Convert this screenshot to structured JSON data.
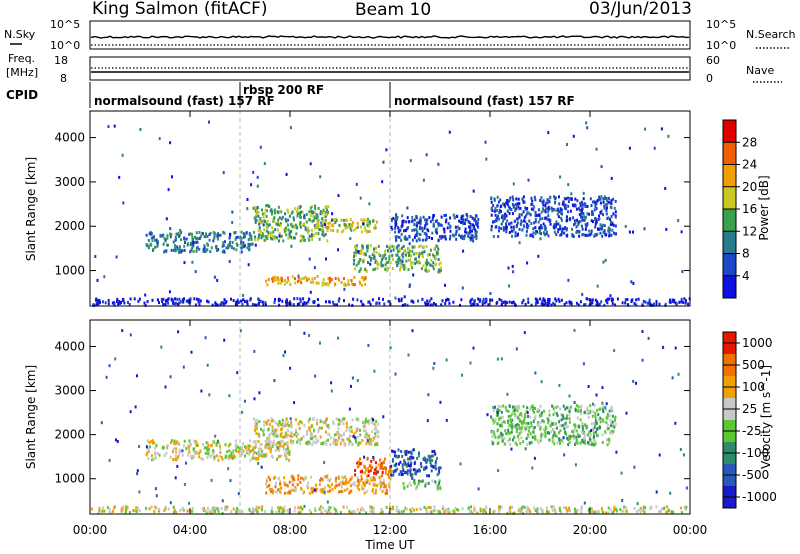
{
  "header": {
    "station": "King Salmon (fitACF)",
    "beam": "Beam 10",
    "date": "03/Jun/2013"
  },
  "panels": {
    "nsky": {
      "left_label": "N.Sky",
      "ticks": [
        "10^5",
        "10^0"
      ],
      "right_label": "N.Search",
      "right_ticks": [
        "10^5",
        "10^0"
      ]
    },
    "freq": {
      "left_label_line1": "Freq.",
      "left_label_line2": "[MHz]",
      "ticks": [
        "18",
        "8"
      ],
      "right_label": "Nave",
      "right_ticks": [
        "60",
        "0"
      ]
    },
    "cpid": {
      "label": "CPID",
      "modes": [
        {
          "text": "normalsound (fast) 157 RF",
          "start_hour": 0
        },
        {
          "text": "rbsp 200 RF",
          "start_hour": 6
        },
        {
          "text": "normalsound (fast) 157 RF",
          "start_hour": 12
        }
      ]
    },
    "power": {
      "ylabel": "Slant Range [km]",
      "colorbar_label": "Power [dB]",
      "colorbar_ticks": [
        "28",
        "24",
        "20",
        "16",
        "12",
        "8",
        "4"
      ],
      "colors": [
        "#1010e0",
        "#1c48c8",
        "#2a7a8e",
        "#3aa050",
        "#c8c81e",
        "#f0a000",
        "#f06000",
        "#e00000"
      ]
    },
    "velocity": {
      "ylabel": "Slant Range [km]",
      "colorbar_label": "Velocity [m s^-1]",
      "colorbar_ticks": [
        "1000",
        "500",
        "100",
        "25",
        "-25",
        "-100",
        "-500",
        "-1000"
      ],
      "colors": [
        "#1a1ac8",
        "#2a58b8",
        "#2e8c6a",
        "#5ac832",
        "#c8c8c8",
        "#f0a000",
        "#f07000",
        "#e81800"
      ]
    }
  },
  "chart_data": {
    "type": "heatmap",
    "xlabel": "Time UT",
    "xticks": [
      "00:00",
      "04:00",
      "08:00",
      "12:00",
      "16:00",
      "20:00",
      "00:00"
    ],
    "xlim_hours": [
      0,
      24
    ],
    "ylim_km": [
      200,
      4600
    ],
    "yticks_km": [
      1000,
      2000,
      3000,
      4000
    ],
    "ytick_labels": [
      "1000",
      "2000",
      "3000",
      "4000"
    ],
    "mode_change_hours": [
      6,
      12
    ],
    "power_scatter_regions": [
      {
        "t0": 2.2,
        "t1": 6.5,
        "r0": 1450,
        "r1": 1900,
        "level": 2
      },
      {
        "t0": 6.5,
        "t1": 9.5,
        "r0": 1700,
        "r1": 2500,
        "level": 3
      },
      {
        "t0": 9.0,
        "t1": 11.5,
        "r0": 1900,
        "r1": 2200,
        "level": 4
      },
      {
        "t0": 7.0,
        "t1": 11.0,
        "r0": 700,
        "r1": 900,
        "level": 5
      },
      {
        "t0": 10.5,
        "t1": 14.0,
        "r0": 1000,
        "r1": 1600,
        "level": 3
      },
      {
        "t0": 12.0,
        "t1": 15.5,
        "r0": 1700,
        "r1": 2300,
        "level": 1
      },
      {
        "t0": 16.0,
        "t1": 21.0,
        "r0": 1800,
        "r1": 2700,
        "level": 1
      },
      {
        "t0": 0.0,
        "t1": 24.0,
        "r0": 200,
        "r1": 400,
        "level": 0
      }
    ],
    "velocity_scatter_regions": [
      {
        "t0": 2.2,
        "t1": 8.0,
        "r0": 1450,
        "r1": 1900,
        "level": 4
      },
      {
        "t0": 6.5,
        "t1": 11.5,
        "r0": 1800,
        "r1": 2400,
        "level": 4
      },
      {
        "t0": 7.0,
        "t1": 12.0,
        "r0": 700,
        "r1": 1100,
        "level": 5
      },
      {
        "t0": 10.5,
        "t1": 12.0,
        "r0": 1100,
        "r1": 1500,
        "level": 6
      },
      {
        "t0": 12.0,
        "t1": 14.0,
        "r0": 1100,
        "r1": 1700,
        "level": 1
      },
      {
        "t0": 12.5,
        "t1": 14.0,
        "r0": 800,
        "r1": 1000,
        "level": 3
      },
      {
        "t0": 16.0,
        "t1": 21.0,
        "r0": 1800,
        "r1": 2700,
        "level": 3
      },
      {
        "t0": 0.0,
        "t1": 24.0,
        "r0": 200,
        "r1": 400,
        "level": 4
      }
    ]
  }
}
